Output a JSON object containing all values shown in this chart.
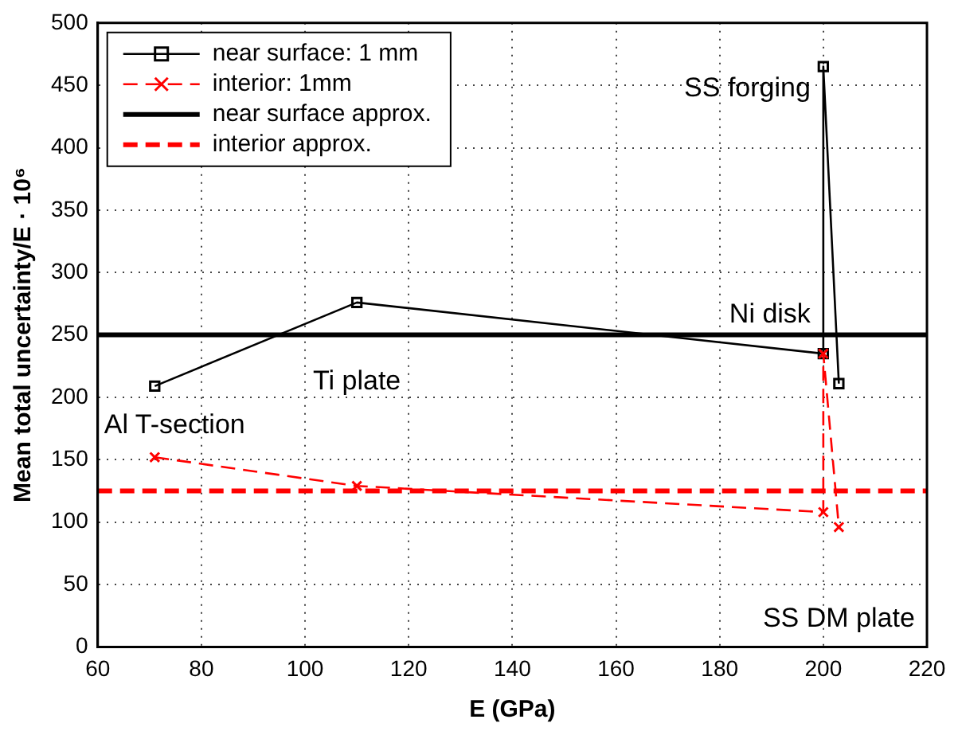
{
  "chart_data": {
    "type": "line",
    "xlabel": "E (GPa)",
    "ylabel": "Mean total uncertainty/E · 10⁶",
    "xlim": [
      60,
      220
    ],
    "xticks": [
      60,
      80,
      100,
      120,
      140,
      160,
      180,
      200,
      220
    ],
    "ylim": [
      0,
      500
    ],
    "yticks": [
      0,
      50,
      100,
      150,
      200,
      250,
      300,
      350,
      400,
      450,
      500
    ],
    "grid": true,
    "legend": "top left",
    "series": [
      {
        "name": "near surface: 1 mm",
        "color": "#000000",
        "marker": "square",
        "line_style": "solid",
        "x": [
          71,
          110,
          200,
          200,
          203
        ],
        "values": [
          209,
          276,
          235,
          465,
          211
        ]
      },
      {
        "name": "interior: 1mm",
        "color": "#ff0000",
        "marker": "cross",
        "line_style": "dashed",
        "x": [
          71,
          110,
          200,
          200,
          203
        ],
        "values": [
          152,
          129,
          108,
          235,
          96
        ]
      },
      {
        "name": "near surface approx.",
        "color": "#000000",
        "marker": "none",
        "line_style": "solid",
        "x": [
          60,
          220
        ],
        "values": [
          250,
          250
        ]
      },
      {
        "name": "interior approx.",
        "color": "#ff0000",
        "marker": "none",
        "line_style": "dashed",
        "x": [
          60,
          220
        ],
        "values": [
          125,
          125
        ]
      }
    ],
    "annotations": [
      {
        "text": "SS forging",
        "x": 200,
        "y": 465
      },
      {
        "text": "Ni disk",
        "x": 200,
        "y": 235
      },
      {
        "text": "Ti plate",
        "x": 110,
        "y": 276
      },
      {
        "text": "Al T-section",
        "x": 71,
        "y": 152
      },
      {
        "text": "SS DM plate",
        "x": 203,
        "y": 96
      }
    ]
  }
}
